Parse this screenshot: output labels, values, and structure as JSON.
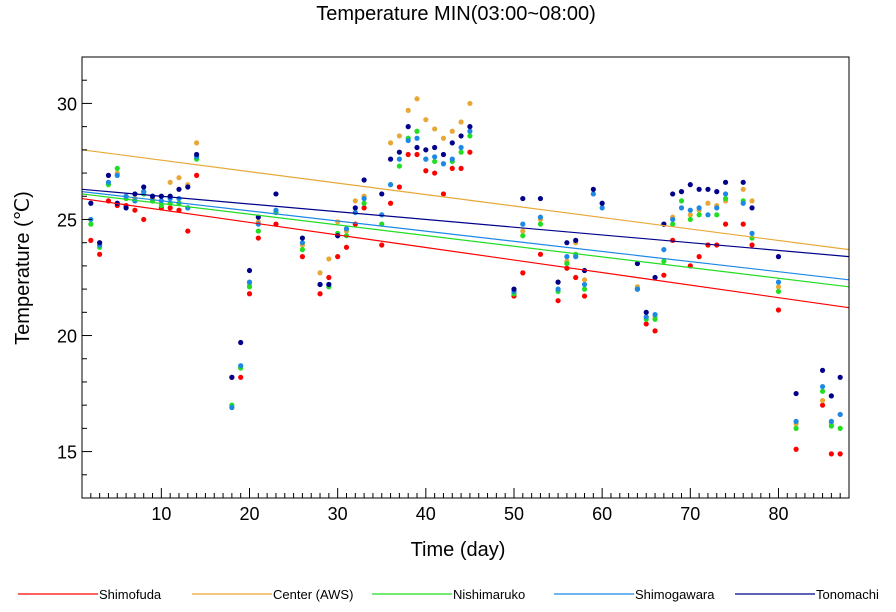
{
  "chart_data": {
    "type": "scatter",
    "title": "Temperature MIN(03:00~08:00)",
    "xlabel": "Time (day)",
    "ylabel": "Temperature (℃)",
    "xlim": [
      1,
      88
    ],
    "ylim": [
      13,
      32
    ],
    "xticks": [
      10,
      20,
      30,
      40,
      50,
      60,
      70,
      80
    ],
    "yticks": [
      15,
      20,
      25,
      30
    ],
    "grid": false,
    "legend_position": "bottom",
    "series": [
      {
        "name": "Shimofuda",
        "color": "#ff0000",
        "trend": [
          [
            1,
            25.9
          ],
          [
            88,
            21.2
          ]
        ],
        "points": [
          [
            2,
            24.1
          ],
          [
            3,
            23.5
          ],
          [
            4,
            25.8
          ],
          [
            5,
            25.6
          ],
          [
            6,
            25.6
          ],
          [
            7,
            25.4
          ],
          [
            8,
            25.0
          ],
          [
            9,
            25.8
          ],
          [
            10,
            25.5
          ],
          [
            11,
            25.5
          ],
          [
            12,
            25.4
          ],
          [
            13,
            24.5
          ],
          [
            14,
            26.9
          ],
          [
            18,
            18.2
          ],
          [
            19,
            18.2
          ],
          [
            20,
            21.8
          ],
          [
            21,
            24.2
          ],
          [
            23,
            24.8
          ],
          [
            26,
            23.4
          ],
          [
            28,
            21.8
          ],
          [
            29,
            22.5
          ],
          [
            30,
            23.4
          ],
          [
            31,
            23.8
          ],
          [
            32,
            24.8
          ],
          [
            33,
            25.5
          ],
          [
            35,
            23.9
          ],
          [
            36,
            25.7
          ],
          [
            37,
            26.4
          ],
          [
            38,
            27.8
          ],
          [
            39,
            27.8
          ],
          [
            40,
            27.1
          ],
          [
            41,
            27.0
          ],
          [
            42,
            26.1
          ],
          [
            43,
            27.2
          ],
          [
            44,
            27.2
          ],
          [
            45,
            27.9
          ],
          [
            50,
            21.7
          ],
          [
            51,
            22.7
          ],
          [
            53,
            23.5
          ],
          [
            55,
            21.5
          ],
          [
            56,
            22.9
          ],
          [
            57,
            22.5
          ],
          [
            58,
            21.7
          ],
          [
            64,
            22.0
          ],
          [
            65,
            20.5
          ],
          [
            66,
            20.2
          ],
          [
            67,
            22.6
          ],
          [
            68,
            24.1
          ],
          [
            70,
            23.0
          ],
          [
            71,
            23.4
          ],
          [
            72,
            23.9
          ],
          [
            73,
            23.9
          ],
          [
            74,
            24.8
          ],
          [
            76,
            24.8
          ],
          [
            77,
            23.9
          ],
          [
            80,
            21.1
          ],
          [
            82,
            15.1
          ],
          [
            85,
            17.0
          ],
          [
            86,
            14.9
          ],
          [
            87,
            14.9
          ]
        ]
      },
      {
        "name": "Center (AWS)",
        "color": "#e8a838",
        "trend": [
          [
            1,
            28.0
          ],
          [
            88,
            23.7
          ]
        ],
        "points": [
          [
            2,
            25.0
          ],
          [
            3,
            24.0
          ],
          [
            4,
            26.6
          ],
          [
            5,
            27.0
          ],
          [
            6,
            26.0
          ],
          [
            7,
            25.9
          ],
          [
            8,
            26.2
          ],
          [
            9,
            25.9
          ],
          [
            10,
            26.0
          ],
          [
            11,
            26.6
          ],
          [
            12,
            26.8
          ],
          [
            13,
            26.5
          ],
          [
            14,
            28.3
          ],
          [
            18,
            16.9
          ],
          [
            19,
            18.6
          ],
          [
            20,
            22.2
          ],
          [
            21,
            24.9
          ],
          [
            23,
            25.3
          ],
          [
            26,
            23.9
          ],
          [
            28,
            22.7
          ],
          [
            29,
            23.3
          ],
          [
            30,
            24.9
          ],
          [
            31,
            24.5
          ],
          [
            32,
            25.8
          ],
          [
            33,
            26.0
          ],
          [
            35,
            25.2
          ],
          [
            36,
            28.3
          ],
          [
            37,
            28.6
          ],
          [
            38,
            29.7
          ],
          [
            39,
            30.2
          ],
          [
            40,
            29.3
          ],
          [
            41,
            28.9
          ],
          [
            42,
            28.5
          ],
          [
            43,
            28.8
          ],
          [
            44,
            29.2
          ],
          [
            45,
            30.0
          ],
          [
            50,
            21.8
          ],
          [
            51,
            24.5
          ],
          [
            53,
            25.0
          ],
          [
            55,
            22.3
          ],
          [
            56,
            23.2
          ],
          [
            57,
            24.0
          ],
          [
            58,
            22.4
          ],
          [
            64,
            22.1
          ],
          [
            65,
            20.8
          ],
          [
            66,
            20.8
          ],
          [
            67,
            24.8
          ],
          [
            68,
            25.1
          ],
          [
            70,
            25.2
          ],
          [
            71,
            25.4
          ],
          [
            72,
            25.7
          ],
          [
            73,
            25.6
          ],
          [
            74,
            25.8
          ],
          [
            76,
            26.3
          ],
          [
            77,
            25.8
          ],
          [
            80,
            22.1
          ],
          [
            82,
            16.2
          ],
          [
            85,
            17.2
          ],
          [
            86,
            16.2
          ],
          [
            87,
            16.6
          ]
        ]
      },
      {
        "name": "Nishimaruko",
        "color": "#22dd22",
        "trend": [
          [
            1,
            26.1
          ],
          [
            88,
            22.1
          ]
        ],
        "points": [
          [
            2,
            24.8
          ],
          [
            3,
            23.8
          ],
          [
            4,
            26.5
          ],
          [
            5,
            27.2
          ],
          [
            6,
            25.9
          ],
          [
            7,
            25.8
          ],
          [
            8,
            26.1
          ],
          [
            9,
            25.8
          ],
          [
            10,
            25.6
          ],
          [
            11,
            25.7
          ],
          [
            12,
            25.7
          ],
          [
            13,
            25.5
          ],
          [
            14,
            27.6
          ],
          [
            18,
            17.0
          ],
          [
            19,
            18.6
          ],
          [
            20,
            22.1
          ],
          [
            21,
            24.5
          ],
          [
            23,
            25.3
          ],
          [
            26,
            23.7
          ],
          [
            28,
            22.2
          ],
          [
            29,
            22.1
          ],
          [
            30,
            24.4
          ],
          [
            31,
            24.3
          ],
          [
            32,
            25.3
          ],
          [
            33,
            25.7
          ],
          [
            35,
            24.8
          ],
          [
            36,
            26.5
          ],
          [
            37,
            27.3
          ],
          [
            38,
            28.5
          ],
          [
            39,
            28.8
          ],
          [
            40,
            27.6
          ],
          [
            41,
            27.5
          ],
          [
            42,
            27.4
          ],
          [
            43,
            27.5
          ],
          [
            44,
            27.9
          ],
          [
            45,
            28.6
          ],
          [
            50,
            21.8
          ],
          [
            51,
            24.3
          ],
          [
            53,
            24.8
          ],
          [
            55,
            21.9
          ],
          [
            56,
            23.1
          ],
          [
            57,
            23.5
          ],
          [
            58,
            22.0
          ],
          [
            64,
            22.0
          ],
          [
            65,
            20.7
          ],
          [
            66,
            20.7
          ],
          [
            67,
            23.2
          ],
          [
            68,
            24.8
          ],
          [
            69,
            25.8
          ],
          [
            70,
            25.0
          ],
          [
            71,
            25.2
          ],
          [
            73,
            25.2
          ],
          [
            74,
            25.9
          ],
          [
            76,
            25.8
          ],
          [
            77,
            24.2
          ],
          [
            80,
            21.9
          ],
          [
            82,
            16.0
          ],
          [
            85,
            17.6
          ],
          [
            86,
            16.1
          ],
          [
            87,
            16.0
          ]
        ]
      },
      {
        "name": "Shimogawara",
        "color": "#1e88e5",
        "trend": [
          [
            1,
            26.2
          ],
          [
            88,
            22.4
          ]
        ],
        "points": [
          [
            2,
            25.0
          ],
          [
            3,
            23.9
          ],
          [
            4,
            26.6
          ],
          [
            5,
            26.9
          ],
          [
            6,
            26.0
          ],
          [
            7,
            25.8
          ],
          [
            8,
            26.2
          ],
          [
            9,
            26.0
          ],
          [
            10,
            25.8
          ],
          [
            11,
            25.9
          ],
          [
            12,
            25.9
          ],
          [
            13,
            25.5
          ],
          [
            14,
            27.7
          ],
          [
            18,
            16.9
          ],
          [
            19,
            18.7
          ],
          [
            20,
            22.3
          ],
          [
            21,
            24.8
          ],
          [
            23,
            25.4
          ],
          [
            26,
            24.0
          ],
          [
            28,
            22.2
          ],
          [
            29,
            22.2
          ],
          [
            30,
            24.3
          ],
          [
            31,
            24.6
          ],
          [
            32,
            25.3
          ],
          [
            33,
            25.9
          ],
          [
            35,
            25.2
          ],
          [
            36,
            26.5
          ],
          [
            37,
            27.6
          ],
          [
            38,
            28.4
          ],
          [
            39,
            28.5
          ],
          [
            40,
            27.6
          ],
          [
            41,
            27.7
          ],
          [
            42,
            27.4
          ],
          [
            43,
            27.6
          ],
          [
            44,
            28.1
          ],
          [
            45,
            28.8
          ],
          [
            50,
            21.9
          ],
          [
            51,
            24.8
          ],
          [
            53,
            25.1
          ],
          [
            55,
            22.0
          ],
          [
            56,
            23.4
          ],
          [
            57,
            23.4
          ],
          [
            58,
            22.2
          ],
          [
            59,
            26.1
          ],
          [
            60,
            25.5
          ],
          [
            64,
            22.0
          ],
          [
            65,
            20.8
          ],
          [
            66,
            20.9
          ],
          [
            67,
            23.7
          ],
          [
            68,
            25.0
          ],
          [
            69,
            25.5
          ],
          [
            70,
            25.4
          ],
          [
            71,
            25.5
          ],
          [
            72,
            25.2
          ],
          [
            73,
            25.5
          ],
          [
            74,
            26.1
          ],
          [
            76,
            25.7
          ],
          [
            77,
            24.4
          ],
          [
            80,
            22.3
          ],
          [
            82,
            16.3
          ],
          [
            85,
            17.8
          ],
          [
            86,
            16.3
          ],
          [
            87,
            16.6
          ]
        ]
      },
      {
        "name": "Tonomachi",
        "color": "#00008b",
        "trend": [
          [
            1,
            26.3
          ],
          [
            88,
            23.4
          ]
        ],
        "points": [
          [
            2,
            25.7
          ],
          [
            3,
            24.0
          ],
          [
            4,
            26.9
          ],
          [
            5,
            25.7
          ],
          [
            6,
            25.5
          ],
          [
            7,
            26.1
          ],
          [
            8,
            26.4
          ],
          [
            9,
            26.0
          ],
          [
            10,
            26.0
          ],
          [
            11,
            26.0
          ],
          [
            12,
            26.3
          ],
          [
            13,
            26.4
          ],
          [
            14,
            27.8
          ],
          [
            18,
            18.2
          ],
          [
            19,
            19.7
          ],
          [
            20,
            22.8
          ],
          [
            21,
            25.1
          ],
          [
            23,
            26.1
          ],
          [
            26,
            24.2
          ],
          [
            28,
            22.2
          ],
          [
            29,
            22.2
          ],
          [
            30,
            24.3
          ],
          [
            32,
            25.5
          ],
          [
            33,
            26.7
          ],
          [
            35,
            26.1
          ],
          [
            36,
            27.6
          ],
          [
            37,
            27.9
          ],
          [
            38,
            29.0
          ],
          [
            39,
            28.1
          ],
          [
            40,
            28.0
          ],
          [
            41,
            28.1
          ],
          [
            42,
            27.8
          ],
          [
            43,
            28.3
          ],
          [
            44,
            28.6
          ],
          [
            45,
            29.0
          ],
          [
            50,
            22.0
          ],
          [
            51,
            25.9
          ],
          [
            53,
            25.9
          ],
          [
            55,
            22.3
          ],
          [
            56,
            24.0
          ],
          [
            57,
            24.1
          ],
          [
            58,
            22.8
          ],
          [
            59,
            26.3
          ],
          [
            60,
            25.7
          ],
          [
            64,
            23.1
          ],
          [
            65,
            21.0
          ],
          [
            66,
            22.5
          ],
          [
            67,
            24.8
          ],
          [
            68,
            26.1
          ],
          [
            69,
            26.2
          ],
          [
            70,
            26.5
          ],
          [
            71,
            26.3
          ],
          [
            72,
            26.3
          ],
          [
            73,
            26.2
          ],
          [
            74,
            26.6
          ],
          [
            76,
            26.6
          ],
          [
            77,
            25.5
          ],
          [
            80,
            23.4
          ],
          [
            82,
            17.5
          ],
          [
            85,
            18.5
          ],
          [
            86,
            17.4
          ],
          [
            87,
            18.2
          ]
        ]
      }
    ]
  }
}
